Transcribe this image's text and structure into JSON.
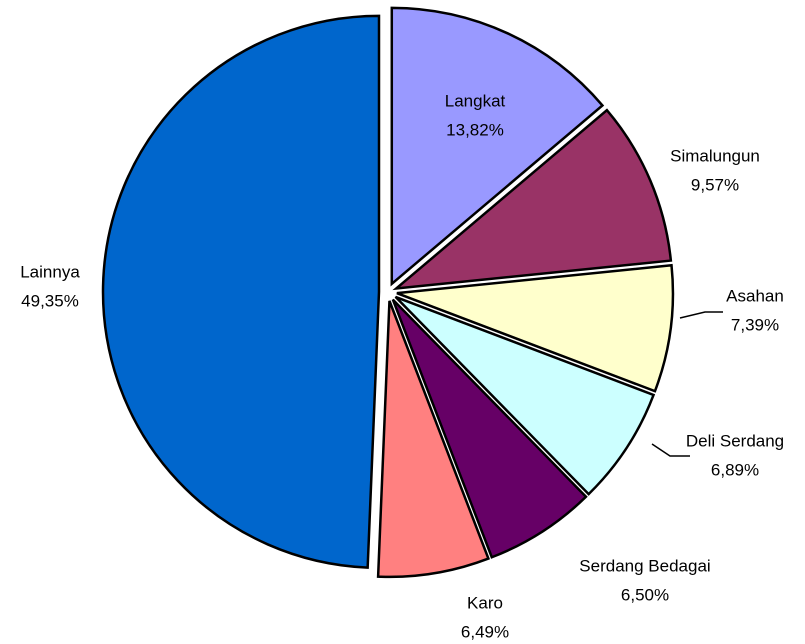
{
  "chart_data": {
    "type": "pie",
    "categories": [
      "Langkat",
      "Simalungun",
      "Asahan",
      "Deli Serdang",
      "Serdang Bedagai",
      "Karo",
      "Lainnya"
    ],
    "values": [
      13.82,
      9.57,
      7.39,
      6.89,
      6.5,
      6.49,
      49.35
    ],
    "value_labels": [
      "13,82%",
      "9,57%",
      "7,39%",
      "6,89%",
      "6,50%",
      "6,49%",
      "49,35%"
    ],
    "colors": [
      "#9999ff",
      "#993366",
      "#ffffcc",
      "#ccffff",
      "#660066",
      "#ff8080",
      "#0066cc"
    ]
  }
}
